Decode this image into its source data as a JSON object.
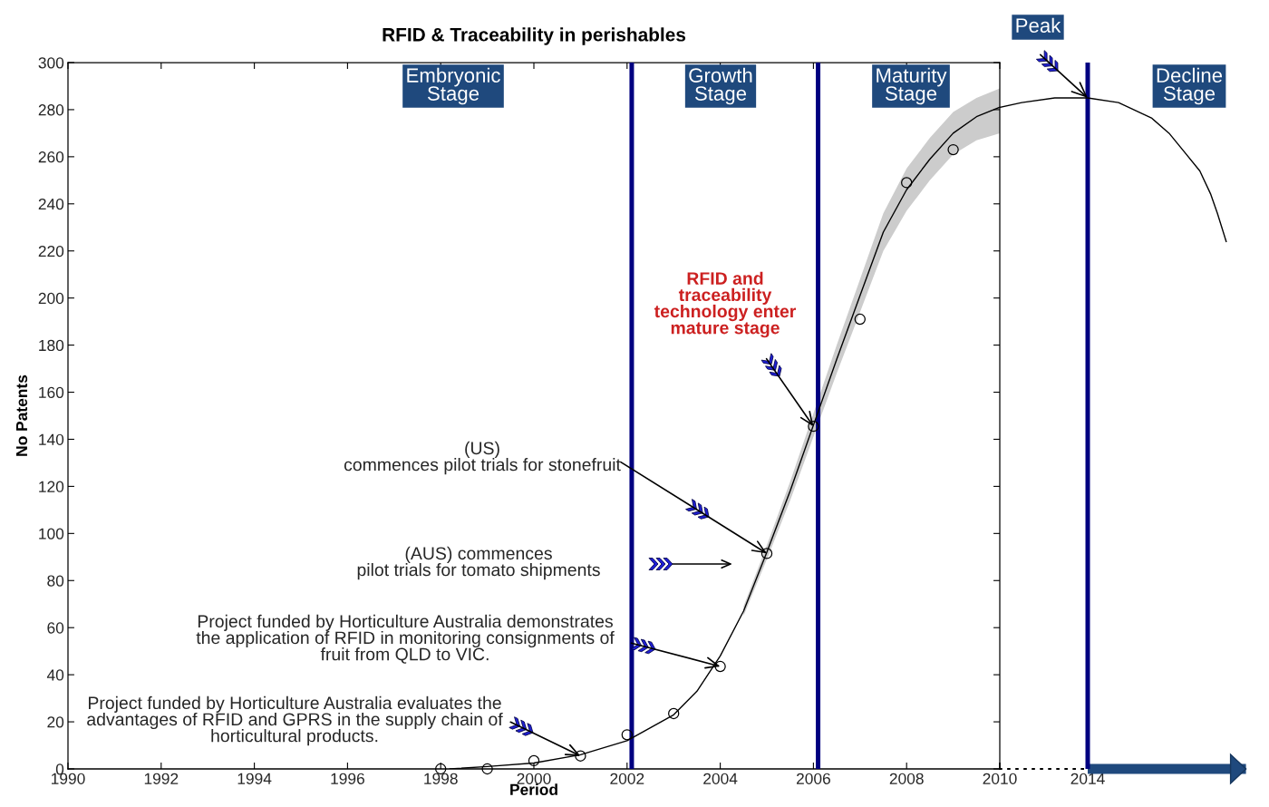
{
  "chart_data": [
    {
      "type": "scatter",
      "title": "RFID & Traceability in perishables",
      "xlabel": "Period",
      "ylabel": "No Patents",
      "xlim": [
        1990,
        2010
      ],
      "xticks": [
        1990,
        1992,
        1994,
        1996,
        1998,
        2000,
        2002,
        2004,
        2006,
        2008,
        {
          "value": 2010,
          "label": null
        }
      ],
      "ylim": [
        0,
        300
      ],
      "yticks": [
        0,
        20,
        40,
        60,
        80,
        100,
        120,
        140,
        160,
        180,
        200,
        220,
        240,
        260,
        280,
        300
      ],
      "series": [
        {
          "type": "scatter",
          "color": "#000000",
          "marker": "circle",
          "x": [
            1998,
            1999,
            2000,
            2001,
            2002,
            2003,
            2004,
            2005,
            2006,
            2007,
            2008,
            2009
          ],
          "values": [
            0,
            0,
            3.5,
            5.5,
            14.5,
            23.5,
            43.5,
            91.5,
            145.5,
            191,
            249,
            263
          ]
        },
        {
          "type": "line",
          "color": "#000000",
          "line_style": "solid",
          "x": [
            1998.2,
            1999,
            2000,
            2001,
            2002,
            2003,
            2003.5,
            2004,
            2004.5,
            2005,
            2005.5,
            2006,
            2006.5,
            2007,
            2007.5,
            2008,
            2008.5,
            2009,
            2009.5,
            2010
          ],
          "values": [
            0,
            1,
            2.5,
            6,
            12,
            23,
            33,
            48,
            67,
            92,
            118,
            146,
            174,
            201,
            228,
            246,
            259,
            270,
            277,
            281
          ],
          "lower": [
            null,
            null,
            null,
            null,
            null,
            null,
            null,
            null,
            65,
            89,
            114,
            141,
            168,
            194,
            220,
            237,
            250,
            261,
            267,
            270
          ],
          "upper": [
            null,
            null,
            null,
            null,
            null,
            null,
            null,
            null,
            69,
            95,
            122,
            151,
            180,
            208,
            236,
            255,
            268,
            279,
            285,
            289
          ]
        }
      ],
      "ref_lines": [
        {
          "axis": "x",
          "value": 2002.1,
          "color": "#000080"
        },
        {
          "axis": "x",
          "value": 2006.1,
          "color": "#000080"
        }
      ],
      "annotations": [
        "Embryonic\nStage",
        "Growth\nStage",
        "Maturity\nStage",
        {
          "text": "Project funded by Horticulture Australia evaluates the\nadvantages of RFID and GPRS in the supply chain of\nhorticultural products.",
          "x": 2001,
          "y": 5.5
        },
        {
          "text": "Project funded by Horticulture Australia demonstrates\nthe application of RFID in monitoring consignments of\nfruit from QLD to VIC.",
          "x": 2004,
          "y": 43.5
        },
        "(AUS) commences\npilot trials for tomato shipments",
        {
          "text": "(US)\ncommences pilot trials for stonefruit",
          "x": 2005,
          "y": 91.5
        },
        {
          "text": "RFID and\ntraceability\ntechnology enter\nmature stage",
          "x": 2006,
          "y": 145.5
        }
      ]
    },
    {
      "type": "line",
      "xlim": [
        2010,
        2021.2
      ],
      "xticks": [
        2010,
        2014
      ],
      "ylim": [
        0,
        300
      ],
      "tick_labels": "x",
      "series": [
        {
          "color": "#000000",
          "x": [
            2010,
            2011,
            2012.5,
            2014,
            2015.4,
            2016.9,
            2017.7,
            2018.4,
            2019.1,
            2019.6,
            2019.9,
            2020.3
          ],
          "values": [
            281,
            283,
            285,
            285,
            283,
            276.5,
            270,
            262,
            254,
            244,
            236,
            224
          ]
        }
      ],
      "ref_lines": [
        {
          "axis": "x",
          "value": 2014,
          "color": "#000080"
        }
      ],
      "annotations": [
        "Decline\nStage",
        {
          "text": "Peak",
          "x": 2014,
          "y": 285
        }
      ]
    }
  ]
}
